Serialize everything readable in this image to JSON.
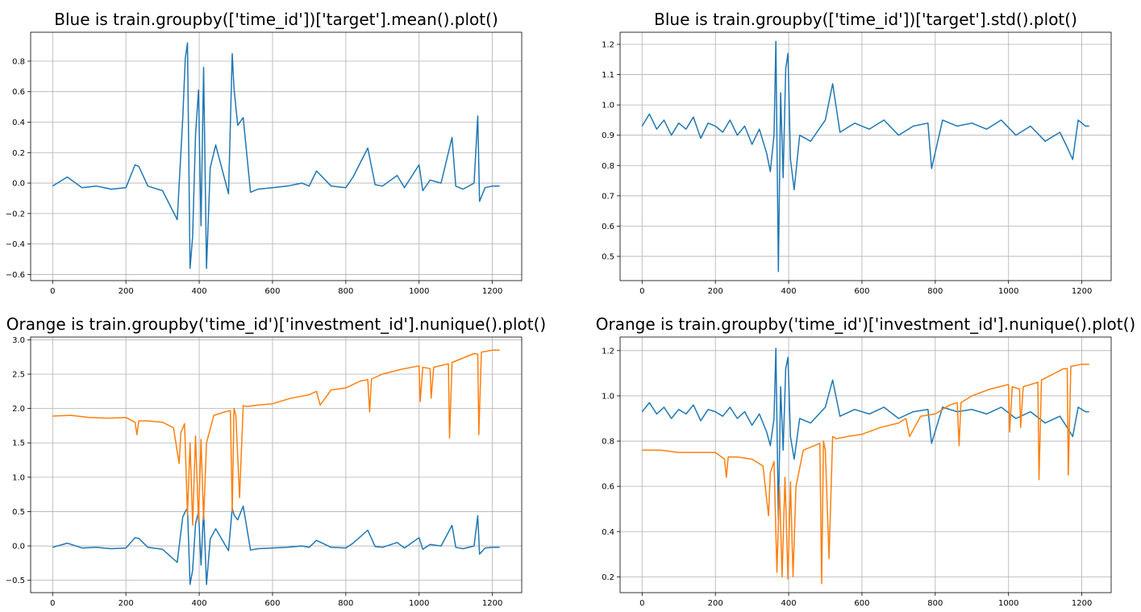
{
  "colors": {
    "blue": "#1f77b4",
    "orange": "#ff7f0e"
  },
  "chart_data": [
    {
      "type": "line",
      "title": "Blue is train.groupby(['time_id'])['target'].mean().plot()",
      "xlabel": "",
      "ylabel": "",
      "xlim": [
        -60,
        1280
      ],
      "ylim": [
        -0.64,
        0.99
      ],
      "xticks": [
        0,
        200,
        400,
        600,
        800,
        1000,
        1200
      ],
      "yticks": [
        -0.6,
        -0.4,
        -0.2,
        0.0,
        0.2,
        0.4,
        0.6,
        0.8
      ],
      "ytick_labels": [
        "−0.6",
        "−0.4",
        "−0.2",
        "0.0",
        "0.2",
        "0.4",
        "0.6",
        "0.8"
      ],
      "grid": true,
      "series": [
        {
          "color": "#1f77b4",
          "x": [
            0,
            40,
            80,
            120,
            160,
            200,
            225,
            235,
            260,
            300,
            340,
            355,
            362,
            368,
            375,
            382,
            390,
            398,
            405,
            412,
            420,
            430,
            445,
            480,
            490,
            495,
            505,
            520,
            540,
            560,
            600,
            640,
            680,
            700,
            720,
            760,
            800,
            820,
            860,
            880,
            900,
            940,
            960,
            1000,
            1010,
            1030,
            1060,
            1090,
            1100,
            1120,
            1150,
            1160,
            1165,
            1180,
            1200,
            1220
          ],
          "values": [
            -0.02,
            0.04,
            -0.03,
            -0.02,
            -0.04,
            -0.03,
            0.12,
            0.11,
            -0.02,
            -0.05,
            -0.24,
            0.42,
            0.82,
            0.92,
            -0.56,
            -0.35,
            0.32,
            0.61,
            -0.28,
            0.76,
            -0.56,
            0.1,
            0.25,
            -0.07,
            0.85,
            0.62,
            0.38,
            0.43,
            -0.06,
            -0.04,
            -0.03,
            -0.02,
            0.0,
            -0.02,
            0.08,
            -0.02,
            -0.03,
            0.04,
            0.23,
            -0.01,
            -0.02,
            0.05,
            -0.03,
            0.12,
            -0.05,
            0.02,
            0.0,
            0.3,
            -0.02,
            -0.04,
            0.0,
            0.44,
            -0.12,
            -0.03,
            -0.02,
            -0.02
          ]
        }
      ]
    },
    {
      "type": "line",
      "title": "Blue is train.groupby(['time_id'])['target'].std().plot()",
      "xlabel": "",
      "ylabel": "",
      "xlim": [
        -60,
        1280
      ],
      "ylim": [
        0.42,
        1.24
      ],
      "xticks": [
        0,
        200,
        400,
        600,
        800,
        1000,
        1200
      ],
      "yticks": [
        0.5,
        0.6,
        0.7,
        0.8,
        0.9,
        1.0,
        1.1,
        1.2
      ],
      "ytick_labels": [
        "0.5",
        "0.6",
        "0.7",
        "0.8",
        "0.9",
        "1.0",
        "1.1",
        "1.2"
      ],
      "grid": true,
      "series": [
        {
          "color": "#1f77b4",
          "x": [
            0,
            20,
            40,
            60,
            80,
            100,
            120,
            140,
            160,
            180,
            200,
            220,
            240,
            260,
            280,
            300,
            320,
            340,
            350,
            360,
            365,
            372,
            378,
            385,
            392,
            398,
            405,
            415,
            430,
            460,
            500,
            520,
            540,
            580,
            620,
            660,
            700,
            740,
            780,
            790,
            820,
            860,
            900,
            940,
            980,
            1020,
            1060,
            1100,
            1140,
            1160,
            1175,
            1190,
            1210,
            1220
          ],
          "values": [
            0.93,
            0.97,
            0.92,
            0.95,
            0.9,
            0.94,
            0.92,
            0.96,
            0.89,
            0.94,
            0.93,
            0.91,
            0.95,
            0.9,
            0.93,
            0.87,
            0.92,
            0.84,
            0.78,
            0.9,
            1.21,
            0.45,
            1.04,
            0.76,
            1.12,
            1.17,
            0.82,
            0.72,
            0.9,
            0.88,
            0.95,
            1.07,
            0.91,
            0.94,
            0.92,
            0.95,
            0.9,
            0.93,
            0.94,
            0.79,
            0.95,
            0.93,
            0.94,
            0.92,
            0.95,
            0.9,
            0.93,
            0.88,
            0.91,
            0.86,
            0.82,
            0.95,
            0.93,
            0.93
          ]
        }
      ]
    },
    {
      "type": "line",
      "title": "Orange is train.groupby('time_id')['investment_id'].nunique().plot()",
      "xlabel": "",
      "ylabel": "",
      "xlim": [
        -60,
        1280
      ],
      "ylim": [
        -0.68,
        3.04
      ],
      "xticks": [
        0,
        200,
        400,
        600,
        800,
        1000,
        1200
      ],
      "yticks": [
        -0.5,
        0.0,
        0.5,
        1.0,
        1.5,
        2.0,
        2.5,
        3.0
      ],
      "ytick_labels": [
        "−0.5",
        "0.0",
        "0.5",
        "1.0",
        "1.5",
        "2.0",
        "2.5",
        "3.0"
      ],
      "grid": true,
      "series": [
        {
          "color": "#1f77b4",
          "x": [
            0,
            40,
            80,
            120,
            160,
            200,
            225,
            235,
            260,
            300,
            340,
            355,
            362,
            368,
            375,
            382,
            390,
            398,
            405,
            412,
            420,
            430,
            445,
            480,
            490,
            495,
            505,
            520,
            540,
            560,
            600,
            640,
            680,
            700,
            720,
            760,
            800,
            820,
            860,
            880,
            900,
            940,
            960,
            1000,
            1010,
            1030,
            1060,
            1090,
            1100,
            1120,
            1150,
            1160,
            1165,
            1180,
            1200,
            1220
          ],
          "values": [
            -0.02,
            0.04,
            -0.03,
            -0.02,
            -0.04,
            -0.03,
            0.12,
            0.11,
            -0.02,
            -0.05,
            -0.24,
            0.42,
            0.5,
            0.55,
            -0.56,
            -0.35,
            0.32,
            0.5,
            -0.28,
            0.52,
            -0.56,
            0.1,
            0.25,
            -0.07,
            0.55,
            0.45,
            0.38,
            0.58,
            -0.06,
            -0.04,
            -0.03,
            -0.02,
            0.0,
            -0.02,
            0.08,
            -0.02,
            -0.03,
            0.04,
            0.23,
            -0.01,
            -0.02,
            0.05,
            -0.03,
            0.12,
            -0.05,
            0.02,
            0.0,
            0.3,
            -0.02,
            -0.04,
            0.0,
            0.44,
            -0.12,
            -0.03,
            -0.02,
            -0.02
          ]
        },
        {
          "color": "#ff7f0e",
          "x": [
            0,
            50,
            100,
            150,
            200,
            225,
            230,
            235,
            260,
            300,
            330,
            345,
            350,
            360,
            368,
            375,
            382,
            390,
            398,
            405,
            412,
            420,
            440,
            470,
            485,
            490,
            495,
            500,
            510,
            520,
            530,
            560,
            600,
            650,
            700,
            720,
            730,
            760,
            800,
            840,
            860,
            865,
            870,
            900,
            950,
            1000,
            1003,
            1010,
            1030,
            1033,
            1040,
            1080,
            1083,
            1090,
            1150,
            1160,
            1163,
            1170,
            1200,
            1220
          ],
          "values": [
            1.89,
            1.9,
            1.87,
            1.86,
            1.87,
            1.8,
            1.62,
            1.82,
            1.82,
            1.8,
            1.72,
            1.2,
            1.65,
            1.78,
            0.45,
            1.5,
            0.3,
            1.6,
            0.35,
            1.55,
            0.38,
            1.5,
            1.9,
            1.95,
            1.97,
            0.5,
            2.0,
            1.9,
            0.7,
            2.04,
            2.03,
            2.05,
            2.07,
            2.15,
            2.2,
            2.25,
            2.05,
            2.27,
            2.3,
            2.4,
            2.42,
            1.95,
            2.43,
            2.5,
            2.57,
            2.62,
            2.1,
            2.6,
            2.58,
            2.15,
            2.6,
            2.65,
            1.57,
            2.67,
            2.8,
            2.79,
            1.62,
            2.82,
            2.85,
            2.85
          ]
        }
      ]
    },
    {
      "type": "line",
      "title": "Orange is train.groupby('time_id')['investment_id'].nunique().plot()",
      "xlabel": "",
      "ylabel": "",
      "xlim": [
        -60,
        1280
      ],
      "ylim": [
        0.13,
        1.26
      ],
      "xticks": [
        0,
        200,
        400,
        600,
        800,
        1000,
        1200
      ],
      "yticks": [
        0.2,
        0.4,
        0.6,
        0.8,
        1.0,
        1.2
      ],
      "ytick_labels": [
        "0.2",
        "0.4",
        "0.6",
        "0.8",
        "1.0",
        "1.2"
      ],
      "grid": true,
      "series": [
        {
          "color": "#1f77b4",
          "x": [
            0,
            20,
            40,
            60,
            80,
            100,
            120,
            140,
            160,
            180,
            200,
            220,
            240,
            260,
            280,
            300,
            320,
            340,
            350,
            360,
            365,
            372,
            378,
            385,
            392,
            398,
            405,
            415,
            430,
            460,
            500,
            520,
            540,
            580,
            620,
            660,
            700,
            740,
            780,
            790,
            820,
            860,
            900,
            940,
            980,
            1020,
            1060,
            1100,
            1140,
            1160,
            1175,
            1190,
            1210,
            1220
          ],
          "values": [
            0.93,
            0.97,
            0.92,
            0.95,
            0.9,
            0.94,
            0.92,
            0.96,
            0.89,
            0.94,
            0.93,
            0.91,
            0.95,
            0.9,
            0.93,
            0.87,
            0.92,
            0.84,
            0.78,
            0.9,
            1.21,
            0.45,
            1.04,
            0.76,
            1.12,
            1.17,
            0.82,
            0.72,
            0.9,
            0.88,
            0.95,
            1.07,
            0.91,
            0.94,
            0.92,
            0.95,
            0.9,
            0.93,
            0.94,
            0.79,
            0.95,
            0.93,
            0.94,
            0.92,
            0.95,
            0.9,
            0.93,
            0.88,
            0.91,
            0.86,
            0.82,
            0.95,
            0.93,
            0.93
          ]
        },
        {
          "color": "#ff7f0e",
          "x": [
            0,
            50,
            100,
            150,
            200,
            225,
            230,
            235,
            260,
            300,
            330,
            345,
            350,
            360,
            368,
            375,
            382,
            390,
            398,
            405,
            412,
            420,
            440,
            470,
            485,
            490,
            495,
            500,
            510,
            520,
            530,
            560,
            600,
            650,
            700,
            720,
            730,
            760,
            800,
            840,
            860,
            865,
            870,
            900,
            950,
            1000,
            1003,
            1010,
            1030,
            1033,
            1040,
            1080,
            1083,
            1090,
            1150,
            1160,
            1163,
            1170,
            1200,
            1220
          ],
          "values": [
            0.76,
            0.76,
            0.75,
            0.75,
            0.75,
            0.72,
            0.64,
            0.73,
            0.73,
            0.72,
            0.69,
            0.47,
            0.66,
            0.71,
            0.22,
            0.6,
            0.2,
            0.64,
            0.19,
            0.62,
            0.2,
            0.6,
            0.76,
            0.78,
            0.79,
            0.17,
            0.8,
            0.76,
            0.28,
            0.82,
            0.81,
            0.82,
            0.83,
            0.86,
            0.88,
            0.9,
            0.82,
            0.91,
            0.92,
            0.96,
            0.97,
            0.78,
            0.97,
            1.0,
            1.03,
            1.05,
            0.84,
            1.04,
            1.03,
            0.86,
            1.04,
            1.06,
            0.63,
            1.07,
            1.12,
            1.12,
            0.65,
            1.13,
            1.14,
            1.14
          ]
        }
      ]
    }
  ]
}
